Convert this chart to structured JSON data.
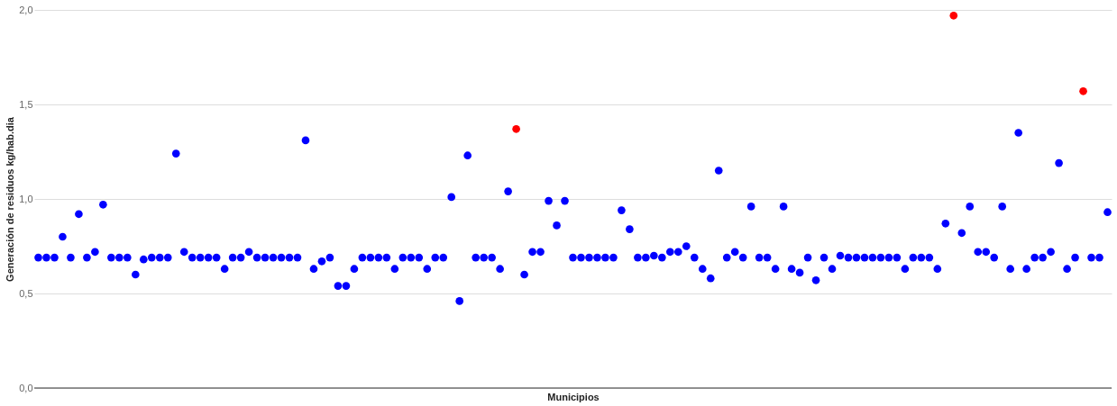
{
  "chart_data": {
    "type": "scatter",
    "xlabel": "Municipios",
    "ylabel": "Generación de residuos kg/hab.dia",
    "categories": [
      null,
      null,
      null,
      null,
      null,
      null,
      null,
      null,
      null,
      null,
      null,
      null,
      null,
      null,
      null,
      null,
      null,
      null,
      null,
      null,
      null,
      null,
      null,
      null,
      null,
      null,
      null,
      null,
      null,
      null,
      null,
      null,
      null,
      null,
      null,
      null,
      null,
      null,
      null,
      null,
      null,
      null,
      null,
      null,
      null,
      null,
      null,
      null,
      null,
      null,
      null,
      null,
      null,
      null,
      null,
      null,
      null,
      null,
      null,
      null,
      null,
      null,
      null,
      null,
      null,
      null,
      null,
      null,
      null,
      null,
      null,
      null,
      null,
      null,
      null,
      null,
      null,
      null,
      null,
      null,
      null,
      null,
      null,
      null,
      null,
      null,
      null,
      null,
      null,
      null,
      null,
      null,
      null,
      null,
      null,
      null,
      null,
      null,
      null,
      null,
      null,
      null,
      null,
      null,
      null,
      null,
      null,
      null,
      null,
      null,
      null,
      null,
      null,
      null,
      null,
      null,
      null,
      null,
      null,
      null,
      null,
      null,
      null,
      null,
      null,
      null,
      null,
      null,
      null,
      null,
      null,
      null,
      null
    ],
    "values": [
      0.69,
      0.69,
      0.69,
      0.8,
      0.69,
      0.92,
      0.69,
      0.72,
      0.97,
      0.69,
      0.69,
      0.69,
      0.6,
      0.68,
      0.69,
      0.69,
      0.69,
      1.24,
      0.72,
      0.69,
      0.69,
      0.69,
      0.69,
      0.63,
      0.69,
      0.69,
      0.72,
      0.69,
      0.69,
      0.69,
      0.69,
      0.69,
      0.69,
      1.31,
      0.63,
      0.67,
      0.69,
      0.54,
      0.54,
      0.63,
      0.69,
      0.69,
      0.69,
      0.69,
      0.63,
      0.69,
      0.69,
      0.69,
      0.63,
      0.69,
      0.69,
      1.01,
      0.46,
      1.23,
      0.69,
      0.69,
      0.69,
      0.63,
      1.04,
      1.37,
      0.6,
      0.72,
      0.72,
      0.99,
      0.86,
      0.99,
      0.69,
      0.69,
      0.69,
      0.69,
      0.69,
      0.69,
      0.94,
      0.84,
      0.69,
      0.69,
      0.7,
      0.69,
      0.72,
      0.72,
      0.75,
      0.69,
      0.63,
      0.58,
      1.15,
      0.69,
      0.72,
      0.69,
      0.96,
      0.69,
      0.69,
      0.63,
      0.96,
      0.63,
      0.61,
      0.69,
      0.57,
      0.69,
      0.63,
      0.7,
      0.69,
      0.69,
      0.69,
      0.69,
      0.69,
      0.69,
      0.69,
      0.63,
      0.69,
      0.69,
      0.69,
      0.63,
      0.87,
      1.97,
      0.82,
      0.96,
      0.72,
      0.72,
      0.69,
      0.96,
      0.63,
      1.35,
      0.63,
      0.69,
      0.69,
      0.72,
      1.19,
      0.63,
      0.69,
      1.57,
      0.69,
      0.69,
      0.93
    ],
    "colors": [
      "#0000ff",
      "#0000ff",
      "#0000ff",
      "#0000ff",
      "#0000ff",
      "#0000ff",
      "#0000ff",
      "#0000ff",
      "#0000ff",
      "#0000ff",
      "#0000ff",
      "#0000ff",
      "#0000ff",
      "#0000ff",
      "#0000ff",
      "#0000ff",
      "#0000ff",
      "#0000ff",
      "#0000ff",
      "#0000ff",
      "#0000ff",
      "#0000ff",
      "#0000ff",
      "#0000ff",
      "#0000ff",
      "#0000ff",
      "#0000ff",
      "#0000ff",
      "#0000ff",
      "#0000ff",
      "#0000ff",
      "#0000ff",
      "#0000ff",
      "#0000ff",
      "#0000ff",
      "#0000ff",
      "#0000ff",
      "#0000ff",
      "#0000ff",
      "#0000ff",
      "#0000ff",
      "#0000ff",
      "#0000ff",
      "#0000ff",
      "#0000ff",
      "#0000ff",
      "#0000ff",
      "#0000ff",
      "#0000ff",
      "#0000ff",
      "#0000ff",
      "#0000ff",
      "#0000ff",
      "#0000ff",
      "#0000ff",
      "#0000ff",
      "#0000ff",
      "#0000ff",
      "#0000ff",
      "#ff0000",
      "#0000ff",
      "#0000ff",
      "#0000ff",
      "#0000ff",
      "#0000ff",
      "#0000ff",
      "#0000ff",
      "#0000ff",
      "#0000ff",
      "#0000ff",
      "#0000ff",
      "#0000ff",
      "#0000ff",
      "#0000ff",
      "#0000ff",
      "#0000ff",
      "#0000ff",
      "#0000ff",
      "#0000ff",
      "#0000ff",
      "#0000ff",
      "#0000ff",
      "#0000ff",
      "#0000ff",
      "#0000ff",
      "#0000ff",
      "#0000ff",
      "#0000ff",
      "#0000ff",
      "#0000ff",
      "#0000ff",
      "#0000ff",
      "#0000ff",
      "#0000ff",
      "#0000ff",
      "#0000ff",
      "#0000ff",
      "#0000ff",
      "#0000ff",
      "#0000ff",
      "#0000ff",
      "#0000ff",
      "#0000ff",
      "#0000ff",
      "#0000ff",
      "#0000ff",
      "#0000ff",
      "#0000ff",
      "#0000ff",
      "#0000ff",
      "#0000ff",
      "#0000ff",
      "#0000ff",
      "#ff0000",
      "#0000ff",
      "#0000ff",
      "#0000ff",
      "#0000ff",
      "#0000ff",
      "#0000ff",
      "#0000ff",
      "#0000ff",
      "#0000ff",
      "#0000ff",
      "#0000ff",
      "#0000ff",
      "#0000ff",
      "#0000ff",
      "#0000ff",
      "#ff0000",
      "#0000ff",
      "#0000ff",
      "#0000ff"
    ],
    "ylim": [
      0,
      2.0
    ],
    "yticks": [
      {
        "value": 0,
        "label": "0,0"
      },
      {
        "value": 0.5,
        "label": "0,5"
      },
      {
        "value": 1.0,
        "label": "1,0"
      },
      {
        "value": 1.5,
        "label": "1,5"
      },
      {
        "value": 2.0,
        "label": "2,0"
      }
    ],
    "grid": "y",
    "marker": "circle",
    "tick_labels": "y"
  }
}
